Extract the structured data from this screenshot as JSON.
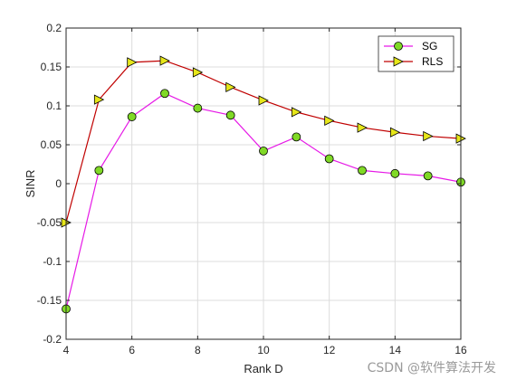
{
  "chart_data": {
    "type": "line",
    "title": "",
    "xlabel": "Rank D",
    "ylabel": "SINR",
    "xlim": [
      4,
      16
    ],
    "ylim": [
      -0.2,
      0.2
    ],
    "xticks": [
      4,
      6,
      8,
      10,
      12,
      14,
      16
    ],
    "yticks": [
      -0.2,
      -0.15,
      -0.1,
      -0.05,
      0,
      0.05,
      0.1,
      0.15,
      0.2
    ],
    "ytick_labels": [
      "-0.2",
      "-0.15",
      "-0.1",
      "-0.05",
      "0",
      "0.05",
      "0.1",
      "0.15",
      "0.2"
    ],
    "grid": true,
    "legend_position": "top-right",
    "x": [
      4,
      5,
      6,
      7,
      8,
      9,
      10,
      11,
      12,
      13,
      14,
      15,
      16
    ],
    "series": [
      {
        "name": "SG",
        "line_color": "#e619e6",
        "marker": "circle",
        "marker_fill": "#80d926",
        "values": [
          -0.161,
          0.017,
          0.086,
          0.116,
          0.097,
          0.088,
          0.042,
          0.06,
          0.032,
          0.017,
          0.013,
          0.01,
          0.002
        ]
      },
      {
        "name": "RLS",
        "line_color": "#c00000",
        "marker": "triangle-right",
        "marker_fill": "#e6e619",
        "values": [
          -0.05,
          0.108,
          0.156,
          0.158,
          0.143,
          0.124,
          0.107,
          0.092,
          0.081,
          0.072,
          0.066,
          0.061,
          0.058
        ]
      }
    ]
  },
  "watermark": "CSDN @软件算法开发"
}
